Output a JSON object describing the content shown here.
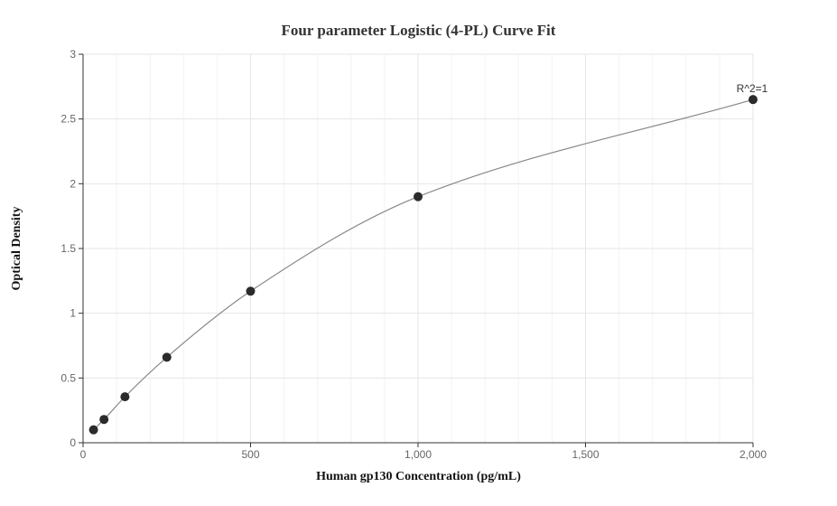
{
  "chart_data": {
    "type": "scatter",
    "title": "Four parameter Logistic (4-PL) Curve Fit",
    "xlabel": "Human gp130 Concentration (pg/mL)",
    "ylabel": "Optical Density",
    "xlim": [
      0,
      2000
    ],
    "ylim": [
      0,
      3
    ],
    "x_ticks": [
      0,
      500,
      1000,
      1500,
      2000
    ],
    "x_tick_labels": [
      "0",
      "500",
      "1,000",
      "1,500",
      "2,000"
    ],
    "y_ticks": [
      0,
      0.5,
      1,
      1.5,
      2,
      2.5,
      3
    ],
    "y_tick_labels": [
      "0",
      "0.5",
      "1",
      "1.5",
      "2",
      "2.5",
      "3"
    ],
    "grid": true,
    "series": [
      {
        "points": [
          {
            "x": 31.25,
            "y": 0.1
          },
          {
            "x": 62.5,
            "y": 0.18
          },
          {
            "x": 125,
            "y": 0.355
          },
          {
            "x": 250,
            "y": 0.66
          },
          {
            "x": 500,
            "y": 1.17
          },
          {
            "x": 1000,
            "y": 1.9
          },
          {
            "x": 2000,
            "y": 2.65
          }
        ],
        "color": "#2b2b2b"
      }
    ],
    "fit_curve_color": "#888888",
    "annotation": {
      "text": "R^2=1",
      "x": 2000,
      "y": 2.65
    }
  }
}
